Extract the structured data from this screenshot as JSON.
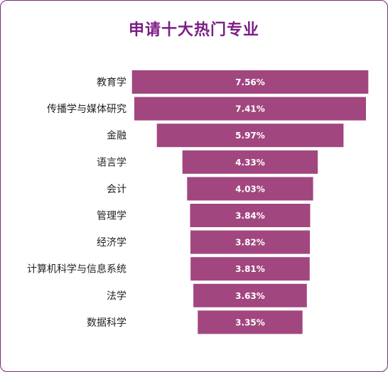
{
  "title": "申请十大热门专业",
  "colors": {
    "bar": "#a2467f",
    "title": "#7b1f86",
    "frame_border": "#7a2a7a"
  },
  "chart_data": {
    "type": "bar",
    "orientation": "horizontal-centered",
    "title": "申请十大热门专业",
    "categories": [
      "教育学",
      "传播学与媒体研究",
      "金融",
      "语言学",
      "会计",
      "管理学",
      "经济学",
      "计算机科学与信息系统",
      "法学",
      "数据科学"
    ],
    "values": [
      7.56,
      7.41,
      5.97,
      4.33,
      4.03,
      3.84,
      3.82,
      3.81,
      3.63,
      3.35
    ],
    "value_labels": [
      "7.56%",
      "7.41%",
      "5.97%",
      "4.33%",
      "4.03%",
      "3.84%",
      "3.82%",
      "3.81%",
      "3.63%",
      "3.35%"
    ],
    "unit": "%",
    "grid": false,
    "legend": "none"
  }
}
